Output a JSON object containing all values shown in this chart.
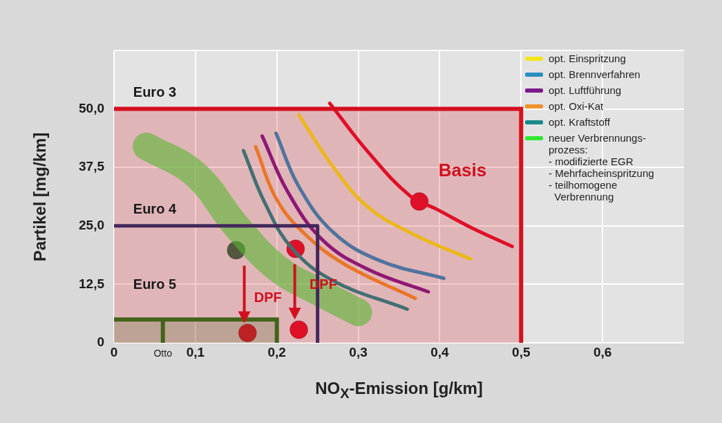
{
  "chart_data": {
    "type": "line",
    "xlabel": "NO$_{X}$-Emission  [g/km]",
    "ylabel": "Partikel  [mg/km]",
    "xlim": [
      0,
      0.7
    ],
    "xticks": [
      0,
      {
        "value": 0.1,
        "label": "0,1"
      },
      {
        "value": 0.2,
        "label": "0,2"
      },
      {
        "value": 0.3,
        "label": "0,3"
      },
      {
        "value": 0.4,
        "label": "0,4"
      },
      {
        "value": 0.5,
        "label": "0,5"
      },
      {
        "value": 0.6,
        "label": "0,6"
      }
    ],
    "ylim": [
      0,
      62.5
    ],
    "yticks": [
      0,
      {
        "value": 12.5,
        "label": "12,5"
      },
      {
        "value": 25,
        "label": "25,0"
      },
      {
        "value": 37.5,
        "label": "37,5"
      },
      {
        "value": 50,
        "label": "50,0"
      },
      {
        "value": 62.5,
        "label": null
      }
    ],
    "grid": true,
    "legend": "top right",
    "series": [
      {
        "type": "area",
        "color": "#d41020",
        "x": [
          0,
          0.5,
          0.5
        ],
        "values": [
          50,
          50,
          0
        ]
      },
      {
        "type": "line",
        "color": "#1a2e6e",
        "x": [
          0,
          0.25,
          0.25
        ],
        "values": [
          25,
          25,
          0
        ]
      },
      {
        "type": "area",
        "color": "#1a7a1a",
        "x": [
          0,
          0.06,
          0.06,
          0.06,
          0.2,
          0.2
        ],
        "values": [
          5,
          5,
          0,
          5,
          5,
          0
        ]
      },
      {
        "type": "line",
        "color": "#e0102a",
        "x": [
          0.265,
          0.312,
          0.363,
          0.397,
          0.439,
          0.489
        ],
        "values": [
          51.2,
          40.8,
          31.5,
          28.5,
          24.6,
          20.6
        ]
      },
      {
        "type": "line",
        "name": "opt. Einspritzung",
        "color": "#f2e61a",
        "x": [
          0.227,
          0.27,
          0.312,
          0.369,
          0.438
        ],
        "values": [
          48.7,
          37.4,
          29,
          23.1,
          17.9
        ]
      },
      {
        "type": "line",
        "name": "opt. Brennverfahren",
        "color": "#2a8fc0",
        "x": [
          0.199,
          0.227,
          0.27,
          0.326,
          0.405
        ],
        "values": [
          44.8,
          33.4,
          23.5,
          17.6,
          13.8
        ]
      },
      {
        "type": "line",
        "name": "opt. Luftführung",
        "color": "#7a1a8c",
        "x": [
          0.182,
          0.213,
          0.256,
          0.312,
          0.386
        ],
        "values": [
          44.2,
          32.4,
          22,
          15.7,
          10.9
        ]
      },
      {
        "type": "line",
        "name": "opt. Oxi-Kat",
        "color": "#f0922a",
        "x": [
          0.174,
          0.199,
          0.233,
          0.284,
          0.37
        ],
        "values": [
          41.9,
          30.9,
          23.5,
          16.7,
          9.5
        ]
      },
      {
        "type": "line",
        "name": "opt. Kraftstoff",
        "color": "#1a8a8a",
        "x": [
          0.159,
          0.185,
          0.219,
          0.27,
          0.36
        ],
        "values": [
          41.1,
          30,
          20.1,
          13.2,
          7.2
        ]
      },
      {
        "type": "line",
        "name": "neuer Verbrennungs-\nprozess:\n- modifizierte EGR\n- Mehrfacheinspritzung\n- teilhomogene\n  Verbrennung",
        "color": "#33e633",
        "x": [
          0.04,
          0.1,
          0.15,
          0.2,
          0.25,
          0.3
        ],
        "values": [
          42,
          36,
          25,
          16,
          11,
          6.5
        ]
      },
      {
        "type": "scatter",
        "marker": "circle",
        "color": "#e0102a",
        "x": [
          0.375,
          0.223,
          0.164,
          0.227
        ],
        "values": [
          30.2,
          20.1,
          2.1,
          2.8
        ]
      },
      {
        "type": "scatter",
        "marker": "circle",
        "color": "#2e6b4a",
        "x": [
          0.15
        ],
        "values": [
          19.8
        ]
      }
    ],
    "annotations": [
      "Euro 3",
      "Euro 4",
      "Euro 5",
      "Basis",
      {
        "text": "DPF",
        "x": 0.164,
        "y": 2.1
      },
      {
        "text": "DPF",
        "x": 0.227,
        "y": 2.8
      },
      "Otto"
    ]
  }
}
